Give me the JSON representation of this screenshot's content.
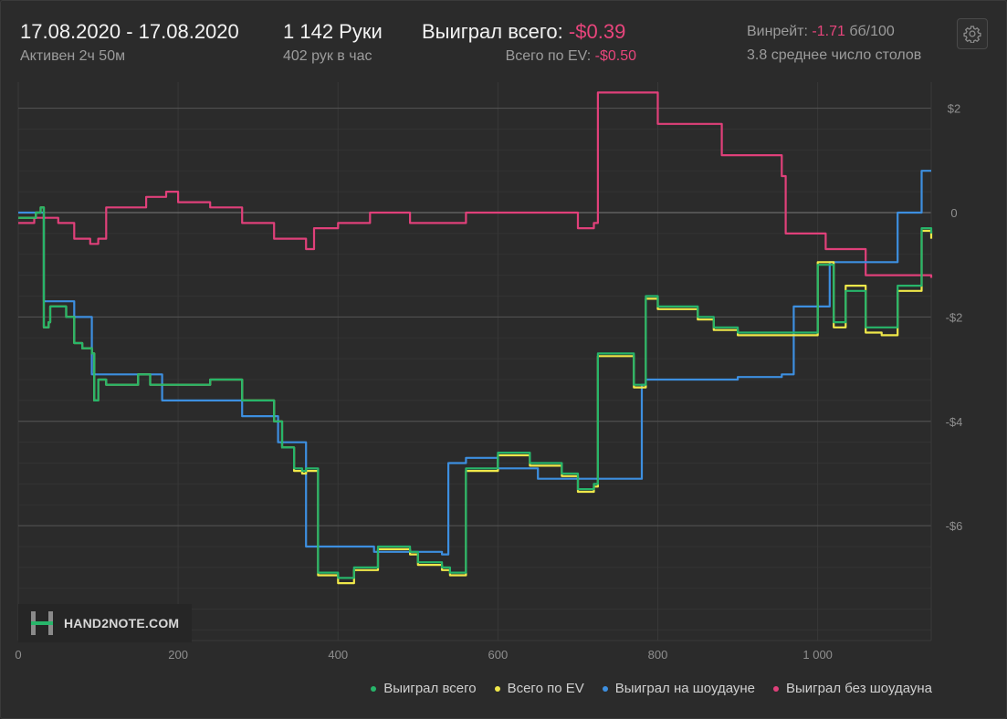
{
  "header": {
    "date_range": "17.08.2020 - 17.08.2020",
    "active": "Активен 2ч 50м",
    "hands": "1 142 Руки",
    "hands_per_hour": "402 рук в час",
    "won_total_label": "Выиграл всего:",
    "won_total_value": "-$0.39",
    "ev_label": "Всего по EV:",
    "ev_value": "-$0.50",
    "winrate_label": "Винрейт:",
    "winrate_value": "-1.71",
    "winrate_unit": "бб/100",
    "tables": "3.8 среднее число столов"
  },
  "watermark": "HAND2NOTE.COM",
  "colors": {
    "green": "#27b56a",
    "yellow": "#f0e84a",
    "blue": "#3d8fe0",
    "pink": "#e0407a",
    "negative": "#e8457c"
  },
  "chart_data": {
    "type": "line",
    "xlim": [
      0,
      1142
    ],
    "ylim": [
      -8.2,
      2.5
    ],
    "y_ticks": [
      2,
      0,
      -2,
      -4,
      -6
    ],
    "y_tick_labels": [
      "$2",
      "0",
      "-$2",
      "-$4",
      "-$6"
    ],
    "x_ticks": [
      0,
      200,
      400,
      600,
      800,
      1000
    ],
    "x_tick_labels": [
      "0",
      "200",
      "400",
      "600",
      "800",
      "1 000"
    ],
    "grid": true,
    "legend_position": "bottom-right",
    "series": [
      {
        "name": "Выиграл всего",
        "color": "#27b56a",
        "x": [
          0,
          22,
          28,
          32,
          38,
          40,
          60,
          70,
          80,
          92,
          95,
          100,
          110,
          150,
          165,
          200,
          240,
          280,
          320,
          330,
          345,
          355,
          360,
          375,
          400,
          420,
          450,
          490,
          500,
          530,
          540,
          560,
          600,
          640,
          680,
          700,
          720,
          725,
          770,
          780,
          785,
          800,
          850,
          870,
          900,
          1000,
          1020,
          1035,
          1060,
          1080,
          1100,
          1130,
          1142
        ],
        "y": [
          -0.1,
          0.0,
          0.1,
          -2.2,
          -2.1,
          -1.8,
          -2.0,
          -2.5,
          -2.6,
          -2.7,
          -3.6,
          -3.2,
          -3.3,
          -3.1,
          -3.3,
          -3.3,
          -3.2,
          -3.6,
          -4.0,
          -4.5,
          -4.9,
          -4.95,
          -4.9,
          -6.9,
          -7.0,
          -6.8,
          -6.4,
          -6.5,
          -6.7,
          -6.8,
          -6.9,
          -4.9,
          -4.6,
          -4.8,
          -5.0,
          -5.3,
          -5.2,
          -2.7,
          -3.3,
          -3.3,
          -1.6,
          -1.8,
          -2.0,
          -2.2,
          -2.3,
          -1.0,
          -2.1,
          -1.5,
          -2.2,
          -2.2,
          -1.4,
          -0.3,
          -0.4
        ]
      },
      {
        "name": "Всего по EV",
        "color": "#f0e84a",
        "x": [
          0,
          22,
          28,
          32,
          38,
          40,
          60,
          70,
          80,
          92,
          95,
          100,
          110,
          150,
          165,
          200,
          240,
          280,
          320,
          330,
          345,
          355,
          360,
          375,
          400,
          420,
          450,
          490,
          500,
          530,
          540,
          560,
          600,
          640,
          680,
          700,
          720,
          725,
          770,
          780,
          785,
          800,
          850,
          870,
          900,
          1000,
          1020,
          1035,
          1060,
          1080,
          1100,
          1130,
          1142
        ],
        "y": [
          -0.1,
          0.0,
          0.1,
          -2.2,
          -2.1,
          -1.8,
          -2.0,
          -2.5,
          -2.6,
          -2.7,
          -3.6,
          -3.2,
          -3.3,
          -3.1,
          -3.3,
          -3.3,
          -3.2,
          -3.6,
          -4.0,
          -4.5,
          -4.95,
          -5.0,
          -4.95,
          -6.95,
          -7.1,
          -6.85,
          -6.45,
          -6.55,
          -6.75,
          -6.85,
          -6.95,
          -4.95,
          -4.65,
          -4.85,
          -5.05,
          -5.35,
          -5.25,
          -2.75,
          -3.35,
          -3.35,
          -1.65,
          -1.85,
          -2.05,
          -2.25,
          -2.35,
          -0.95,
          -2.2,
          -1.4,
          -2.3,
          -2.35,
          -1.5,
          -0.35,
          -0.5
        ]
      },
      {
        "name": "Выиграл на шоудауне",
        "color": "#3d8fe0",
        "x": [
          0,
          30,
          32,
          70,
          92,
          96,
          180,
          280,
          325,
          360,
          445,
          530,
          538,
          560,
          600,
          650,
          700,
          780,
          785,
          820,
          900,
          955,
          970,
          1000,
          1015,
          1080,
          1100,
          1130,
          1142
        ],
        "y": [
          0.0,
          0.0,
          -1.7,
          -2.0,
          -3.1,
          -3.1,
          -3.6,
          -3.9,
          -4.4,
          -6.4,
          -6.5,
          -6.55,
          -4.8,
          -4.7,
          -4.9,
          -5.1,
          -5.1,
          -3.3,
          -3.2,
          -3.2,
          -3.15,
          -3.1,
          -1.8,
          -1.8,
          -0.95,
          -0.95,
          0.0,
          0.8,
          0.8
        ]
      },
      {
        "name": "Выиграл без шоудауна",
        "color": "#e0407a",
        "x": [
          0,
          20,
          50,
          70,
          90,
          100,
          110,
          160,
          185,
          200,
          240,
          280,
          320,
          360,
          370,
          400,
          440,
          490,
          560,
          660,
          700,
          720,
          725,
          800,
          880,
          955,
          960,
          1010,
          1060,
          1070,
          1142
        ],
        "y": [
          -0.2,
          -0.1,
          -0.2,
          -0.5,
          -0.6,
          -0.5,
          0.1,
          0.3,
          0.4,
          0.2,
          0.1,
          -0.2,
          -0.5,
          -0.7,
          -0.3,
          -0.2,
          0.0,
          -0.2,
          0.0,
          0.0,
          -0.3,
          -0.2,
          2.3,
          1.7,
          1.1,
          0.7,
          -0.4,
          -0.7,
          -1.2,
          -1.2,
          -1.25
        ]
      }
    ]
  }
}
